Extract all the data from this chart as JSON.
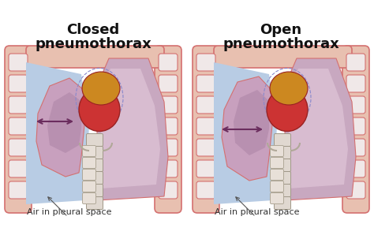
{
  "bg_color": "#ffffff",
  "left_label_line1": "Closed",
  "left_label_line2": "pneumothorax",
  "right_label_line1": "Open",
  "right_label_line2": "pneumothorax",
  "air_label": "Air in pleural space",
  "air_space_color": "#b8cce4",
  "right_lung_color": "#c8a8c0",
  "collapsed_lung_color": "#c8a0be",
  "collapsed_lung_inner": "#b890b0",
  "chest_wall_color": "#e8c0b0",
  "chest_wall_edge": "#d47070",
  "rib_fill": "#f0e8e8",
  "rib_edge": "#d47070",
  "heart_upper_color": "#cc3333",
  "heart_lower_color": "#cc8820",
  "heart_edge": "#992222",
  "trachea_fill": "#e8e0d8",
  "trachea_ring": "#b0a898",
  "spine_fill": "#e0d8d0",
  "spine_edge": "#a09888",
  "arrow_color": "#6b2d5e",
  "label_color": "#111111",
  "label_fontsize": 13,
  "air_label_fontsize": 8
}
